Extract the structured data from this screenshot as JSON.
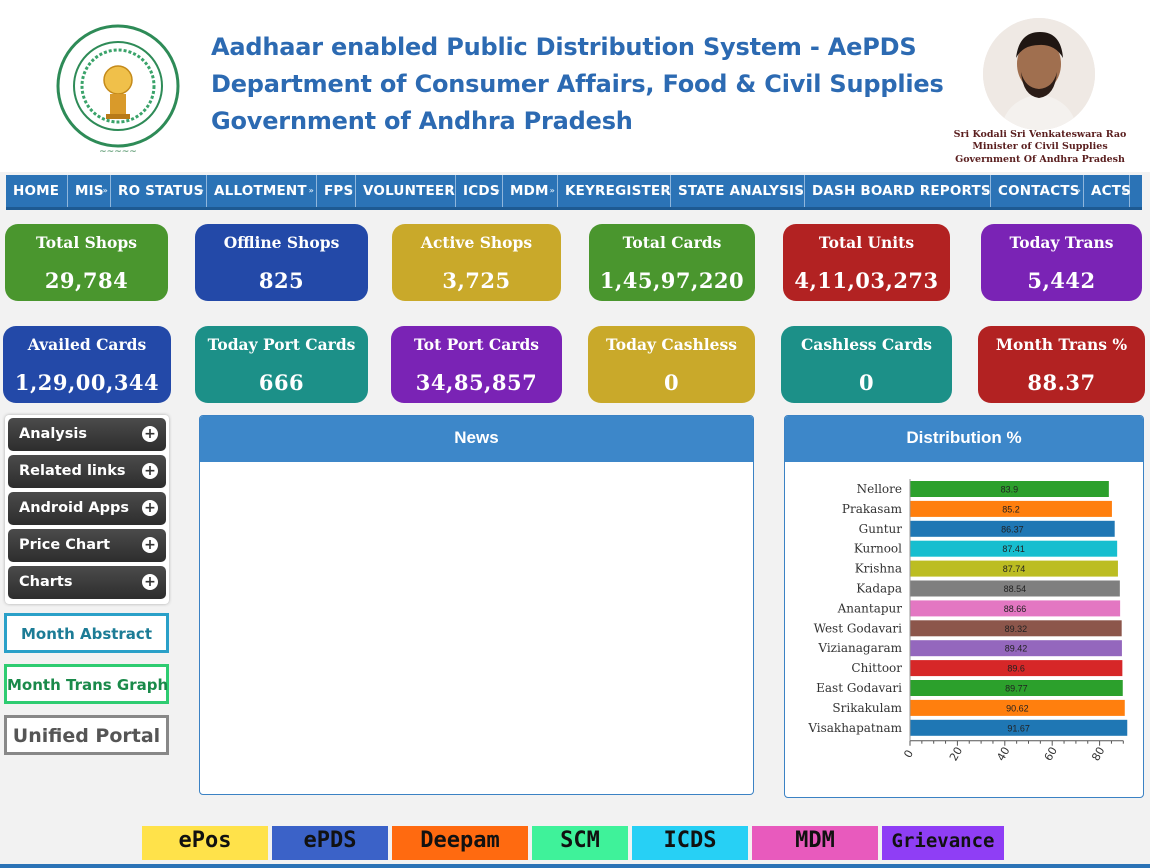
{
  "header": {
    "title_line1": "Aadhaar enabled Public Distribution System - AePDS",
    "title_line2": "Department of Consumer Affairs, Food & Civil Supplies",
    "title_line3": "Government of Andhra Pradesh",
    "minister_name": "Sri Kodali Sri Venkateswara Rao",
    "minister_role": "Minister of Civil Supplies",
    "minister_govt": "Government Of Andhra Pradesh"
  },
  "nav": [
    {
      "label": "HOME",
      "dropdown": false
    },
    {
      "label": "MIS",
      "dropdown": true
    },
    {
      "label": "RO STATUS",
      "dropdown": true
    },
    {
      "label": "ALLOTMENT",
      "dropdown": true
    },
    {
      "label": "FPS",
      "dropdown": true
    },
    {
      "label": "VOLUNTEER",
      "dropdown": true
    },
    {
      "label": "ICDS",
      "dropdown": true
    },
    {
      "label": "MDM",
      "dropdown": true
    },
    {
      "label": "KEYREGISTER",
      "dropdown": true
    },
    {
      "label": "STATE ANALYSIS",
      "dropdown": true
    },
    {
      "label": "DASH BOARD REPORTS",
      "dropdown": true
    },
    {
      "label": "CONTACTS",
      "dropdown": true
    },
    {
      "label": "ACTS",
      "dropdown": true
    }
  ],
  "stats": [
    {
      "label": "Total Shops",
      "value": "29,784",
      "color": "#4a962e"
    },
    {
      "label": "Offline Shops",
      "value": "825",
      "color": "#2349a8"
    },
    {
      "label": "Active Shops",
      "value": "3,725",
      "color": "#c9a92a"
    },
    {
      "label": "Total Cards",
      "value": "1,45,97,220",
      "color": "#4a962e"
    },
    {
      "label": "Total Units",
      "value": "4,11,03,273",
      "color": "#b22222"
    },
    {
      "label": "Today Trans",
      "value": "5,442",
      "color": "#7a23b5"
    },
    {
      "label": "Availed Cards",
      "value": "1,29,00,344",
      "color": "#2349a8"
    },
    {
      "label": "Today Port Cards",
      "value": "666",
      "color": "#1c9088"
    },
    {
      "label": "Tot Port Cards",
      "value": "34,85,857",
      "color": "#7a23b5"
    },
    {
      "label": "Today Cashless",
      "value": "0",
      "color": "#c9a92a"
    },
    {
      "label": "Cashless Cards",
      "value": "0",
      "color": "#1c9088"
    },
    {
      "label": "Month Trans %",
      "value": "88.37",
      "color": "#b22222"
    }
  ],
  "accordion": [
    "Analysis",
    "Related links",
    "Android Apps",
    "Price Chart",
    "Charts"
  ],
  "side_links": {
    "month_abstract": "Month Abstract",
    "month_trans_graph": "Month Trans Graph",
    "unified_portal": "Unified Portal"
  },
  "news": {
    "title": "News"
  },
  "distribution": {
    "title": "Distribution %"
  },
  "chart_data": {
    "type": "bar",
    "orientation": "horizontal",
    "title": "Distribution %",
    "categories": [
      "Nellore",
      "Prakasam",
      "Guntur",
      "Kurnool",
      "Krishna",
      "Kadapa",
      "Anantapur",
      "West Godavari",
      "Vizianagaram",
      "Chittoor",
      "East Godavari",
      "Srikakulam",
      "Visakhapatnam"
    ],
    "values": [
      83.9,
      85.2,
      86.37,
      87.41,
      87.74,
      88.54,
      88.66,
      89.32,
      89.42,
      89.6,
      89.77,
      90.62,
      91.67
    ],
    "value_labels": [
      "83.9",
      "85.2",
      "86.37",
      "87.41",
      "87.74",
      "88.54",
      "88.66",
      "89.32",
      "89.42",
      "89.6",
      "89.77",
      "90.62",
      "91.67"
    ],
    "colors": [
      "#2ca02c",
      "#ff7f0e",
      "#1f77b4",
      "#17becf",
      "#bcbd22",
      "#7f7f7f",
      "#e377c2",
      "#8c564b",
      "#9467bd",
      "#d62728",
      "#2ca02c",
      "#ff7f0e",
      "#1f77b4"
    ],
    "xlim": [
      0,
      90
    ],
    "xticks": [
      "0",
      "20",
      "40",
      "60",
      "80"
    ],
    "xtick_values": [
      0,
      20,
      40,
      60,
      80
    ],
    "grid": false
  },
  "bottom_links": [
    {
      "label": "ePos",
      "color": "#ffe24a"
    },
    {
      "label": "ePDS",
      "color": "#3b62c8"
    },
    {
      "label": "Deepam",
      "color": "#ff6a10"
    },
    {
      "label": "SCM",
      "color": "#3ff29a"
    },
    {
      "label": "ICDS",
      "color": "#27d0f5"
    },
    {
      "label": "MDM",
      "color": "#e85abd"
    },
    {
      "label": "Grievance",
      "color": "#8f3ef5"
    }
  ]
}
